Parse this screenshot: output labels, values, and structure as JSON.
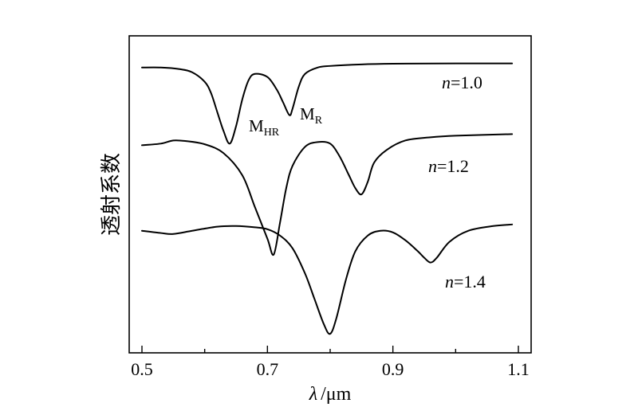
{
  "chart_data": {
    "type": "line",
    "title": "",
    "xlabel_symbol": "λ",
    "xlabel_unit": "/μm",
    "ylabel": "透射系数",
    "xlim": [
      0.5,
      1.1
    ],
    "xticks": [
      0.5,
      0.7,
      0.9,
      1.1
    ],
    "xtick_labels": [
      "0.5",
      "0.7",
      "0.9",
      "1.1"
    ],
    "yticks_labeled": false,
    "grid": false,
    "legend": "none",
    "series": [
      {
        "name": "n=1.0",
        "label_italic": "n",
        "label_rest": "=1.0",
        "x": [
          0.5,
          0.53,
          0.56,
          0.58,
          0.6,
          0.61,
          0.62,
          0.63,
          0.64,
          0.65,
          0.66,
          0.67,
          0.68,
          0.7,
          0.715,
          0.725,
          0.735,
          0.74,
          0.75,
          0.76,
          0.78,
          0.8,
          0.85,
          0.9,
          1.0,
          1.09
        ],
        "y": [
          0.9,
          0.9,
          0.895,
          0.885,
          0.855,
          0.82,
          0.76,
          0.7,
          0.66,
          0.715,
          0.8,
          0.86,
          0.88,
          0.87,
          0.83,
          0.79,
          0.75,
          0.77,
          0.84,
          0.88,
          0.9,
          0.905,
          0.91,
          0.912,
          0.913,
          0.913
        ]
      },
      {
        "name": "n=1.2",
        "label_italic": "n",
        "label_rest": "=1.2",
        "x": [
          0.5,
          0.53,
          0.55,
          0.57,
          0.6,
          0.63,
          0.66,
          0.68,
          0.7,
          0.71,
          0.72,
          0.73,
          0.74,
          0.76,
          0.78,
          0.8,
          0.815,
          0.83,
          0.84,
          0.85,
          0.86,
          0.87,
          0.89,
          0.92,
          0.96,
          1.0,
          1.09
        ],
        "y": [
          0.655,
          0.66,
          0.67,
          0.668,
          0.658,
          0.63,
          0.56,
          0.46,
          0.36,
          0.31,
          0.41,
          0.52,
          0.59,
          0.65,
          0.665,
          0.66,
          0.62,
          0.56,
          0.52,
          0.5,
          0.54,
          0.6,
          0.64,
          0.67,
          0.68,
          0.685,
          0.69
        ]
      },
      {
        "name": "n=1.4",
        "label_italic": "n",
        "label_rest": "=1.4",
        "x": [
          0.5,
          0.53,
          0.55,
          0.58,
          0.62,
          0.65,
          0.68,
          0.7,
          0.72,
          0.74,
          0.76,
          0.775,
          0.79,
          0.8,
          0.81,
          0.825,
          0.84,
          0.86,
          0.88,
          0.9,
          0.92,
          0.94,
          0.95,
          0.96,
          0.97,
          0.99,
          1.02,
          1.06,
          1.09
        ],
        "y": [
          0.385,
          0.378,
          0.375,
          0.385,
          0.398,
          0.4,
          0.396,
          0.39,
          0.37,
          0.33,
          0.25,
          0.17,
          0.09,
          0.06,
          0.11,
          0.23,
          0.32,
          0.37,
          0.385,
          0.38,
          0.355,
          0.32,
          0.3,
          0.285,
          0.3,
          0.35,
          0.385,
          0.4,
          0.405
        ]
      }
    ],
    "annotations": [
      {
        "main": "M",
        "sub": "HR"
      },
      {
        "main": "M",
        "sub": "R"
      }
    ]
  }
}
